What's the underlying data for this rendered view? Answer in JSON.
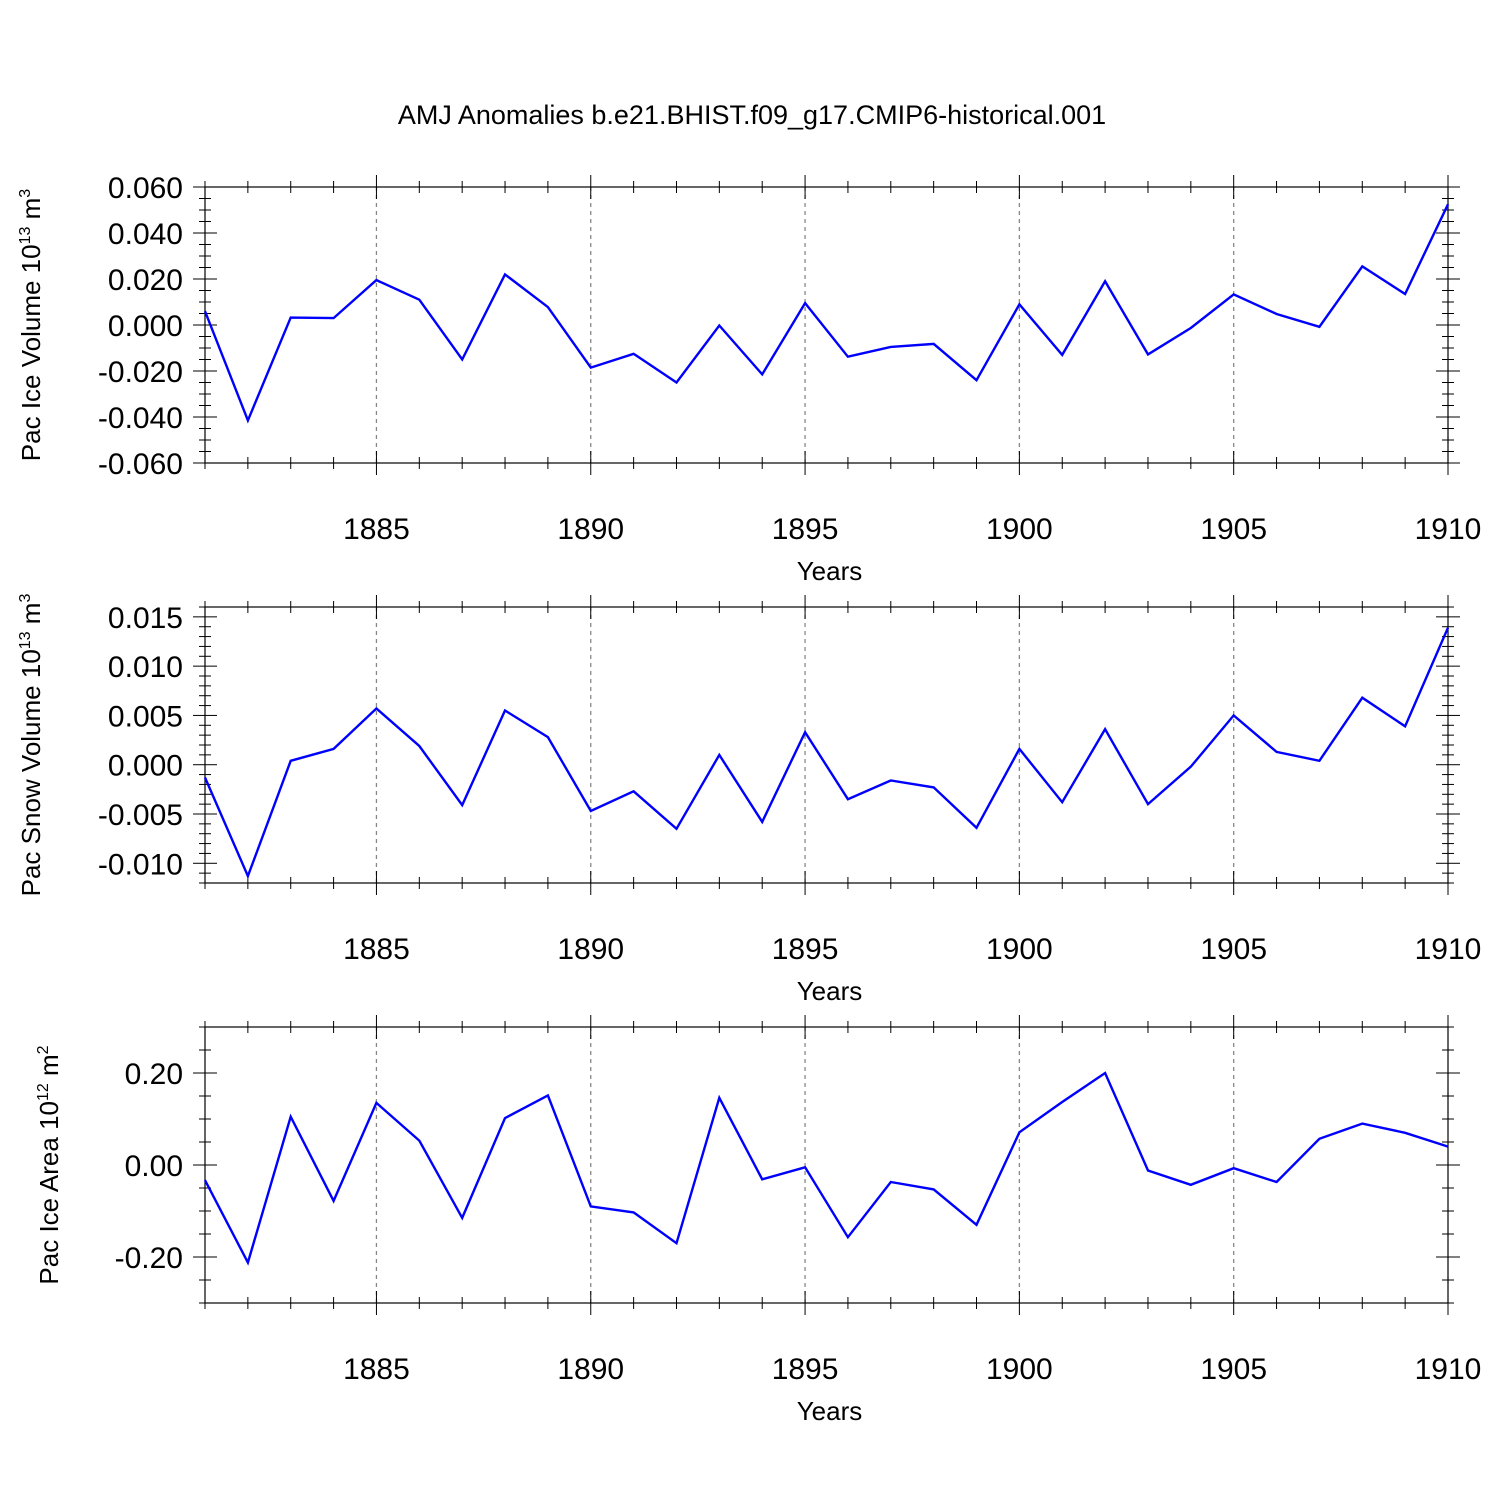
{
  "figure": {
    "title": "AMJ Anomalies b.e21.BHIST.f09_g17.CMIP6-historical.001"
  },
  "chart_data": [
    {
      "type": "line",
      "ylabel_main": "Pac Ice Volume 10",
      "ylabel_exp": "13",
      "ylabel_unit": " m",
      "ylabel_unit_exp": "3",
      "xlabel": "Years",
      "xlim": [
        1881,
        1910
      ],
      "ylim": [
        -0.06,
        0.06
      ],
      "yticks": [
        -0.06,
        -0.04,
        -0.02,
        0.0,
        0.02,
        0.04,
        0.06
      ],
      "yticklabels": [
        "-0.060",
        "-0.040",
        "-0.020",
        "0.000",
        "0.020",
        "0.040",
        "0.060"
      ],
      "yminor": 0.005,
      "xticks": [
        1885,
        1890,
        1895,
        1900,
        1905,
        1910
      ],
      "xticklabels": [
        "1885",
        "1890",
        "1895",
        "1900",
        "1905",
        "1910"
      ],
      "grid": "vertical dashed at major x ticks",
      "line_color": "#0000ff",
      "series": [
        {
          "x": [
            1881,
            1882,
            1883,
            1884,
            1885,
            1886,
            1887,
            1888,
            1889,
            1890,
            1891,
            1892,
            1893,
            1894,
            1895,
            1896,
            1897,
            1898,
            1899,
            1900,
            1901,
            1902,
            1903,
            1904,
            1905,
            1906,
            1907,
            1908,
            1909,
            1910
          ],
          "values": [
            0.006,
            -0.0415,
            0.0032,
            0.003,
            0.0195,
            0.011,
            -0.015,
            0.022,
            0.0078,
            -0.0185,
            -0.0125,
            -0.025,
            -0.0002,
            -0.0215,
            0.0095,
            -0.0138,
            -0.0095,
            -0.0082,
            -0.024,
            0.009,
            -0.013,
            0.019,
            -0.0128,
            -0.0013,
            0.0133,
            0.0048,
            -0.0008,
            0.0255,
            0.0135,
            0.0525
          ]
        }
      ]
    },
    {
      "type": "line",
      "ylabel_main": "Pac Snow Volume 10",
      "ylabel_exp": "13",
      "ylabel_unit": " m",
      "ylabel_unit_exp": "3",
      "xlabel": "Years",
      "xlim": [
        1881,
        1910
      ],
      "ylim": [
        -0.012,
        0.016
      ],
      "yticks": [
        -0.01,
        -0.005,
        0.0,
        0.005,
        0.01,
        0.015
      ],
      "yticklabels": [
        "-0.010",
        "-0.005",
        "0.000",
        "0.005",
        "0.010",
        "0.015"
      ],
      "yminor": 0.001,
      "xticks": [
        1885,
        1890,
        1895,
        1900,
        1905,
        1910
      ],
      "xticklabels": [
        "1885",
        "1890",
        "1895",
        "1900",
        "1905",
        "1910"
      ],
      "grid": "vertical dashed at major x ticks",
      "line_color": "#0000ff",
      "series": [
        {
          "x": [
            1881,
            1882,
            1883,
            1884,
            1885,
            1886,
            1887,
            1888,
            1889,
            1890,
            1891,
            1892,
            1893,
            1894,
            1895,
            1896,
            1897,
            1898,
            1899,
            1900,
            1901,
            1902,
            1903,
            1904,
            1905,
            1906,
            1907,
            1908,
            1909,
            1910
          ],
          "values": [
            -0.0013,
            -0.0113,
            0.0004,
            0.0016,
            0.0057,
            0.0019,
            -0.0041,
            0.0055,
            0.0028,
            -0.0047,
            -0.0027,
            -0.0065,
            0.001,
            -0.0058,
            0.0033,
            -0.0035,
            -0.0016,
            -0.0023,
            -0.0064,
            0.0016,
            -0.0038,
            0.0036,
            -0.004,
            -0.0002,
            0.005,
            0.0013,
            0.0004,
            0.0068,
            0.0039,
            0.0139
          ]
        }
      ]
    },
    {
      "type": "line",
      "ylabel_main": "Pac Ice Area 10",
      "ylabel_exp": "12",
      "ylabel_unit": " m",
      "ylabel_unit_exp": "2",
      "xlabel": "Years",
      "xlim": [
        1881,
        1910
      ],
      "ylim": [
        -0.3,
        0.3
      ],
      "yticks": [
        -0.2,
        0.0,
        0.2
      ],
      "yticklabels": [
        "-0.20",
        "0.00",
        "0.20"
      ],
      "yminor": 0.05,
      "xticks": [
        1885,
        1890,
        1895,
        1900,
        1905,
        1910
      ],
      "xticklabels": [
        "1885",
        "1890",
        "1895",
        "1900",
        "1905",
        "1910"
      ],
      "grid": "vertical dashed at major x ticks",
      "line_color": "#0000ff",
      "series": [
        {
          "x": [
            1881,
            1882,
            1883,
            1884,
            1885,
            1886,
            1887,
            1888,
            1889,
            1890,
            1891,
            1892,
            1893,
            1894,
            1895,
            1896,
            1897,
            1898,
            1899,
            1900,
            1901,
            1902,
            1903,
            1904,
            1905,
            1906,
            1907,
            1908,
            1909,
            1910
          ],
          "values": [
            -0.033,
            -0.212,
            0.105,
            -0.078,
            0.135,
            0.053,
            -0.115,
            0.102,
            0.151,
            -0.09,
            -0.103,
            -0.17,
            0.146,
            -0.031,
            -0.005,
            -0.157,
            -0.037,
            -0.053,
            -0.13,
            0.071,
            0.137,
            0.2,
            -0.012,
            -0.043,
            -0.007,
            -0.037,
            0.057,
            0.09,
            0.07,
            0.04
          ]
        }
      ]
    }
  ]
}
